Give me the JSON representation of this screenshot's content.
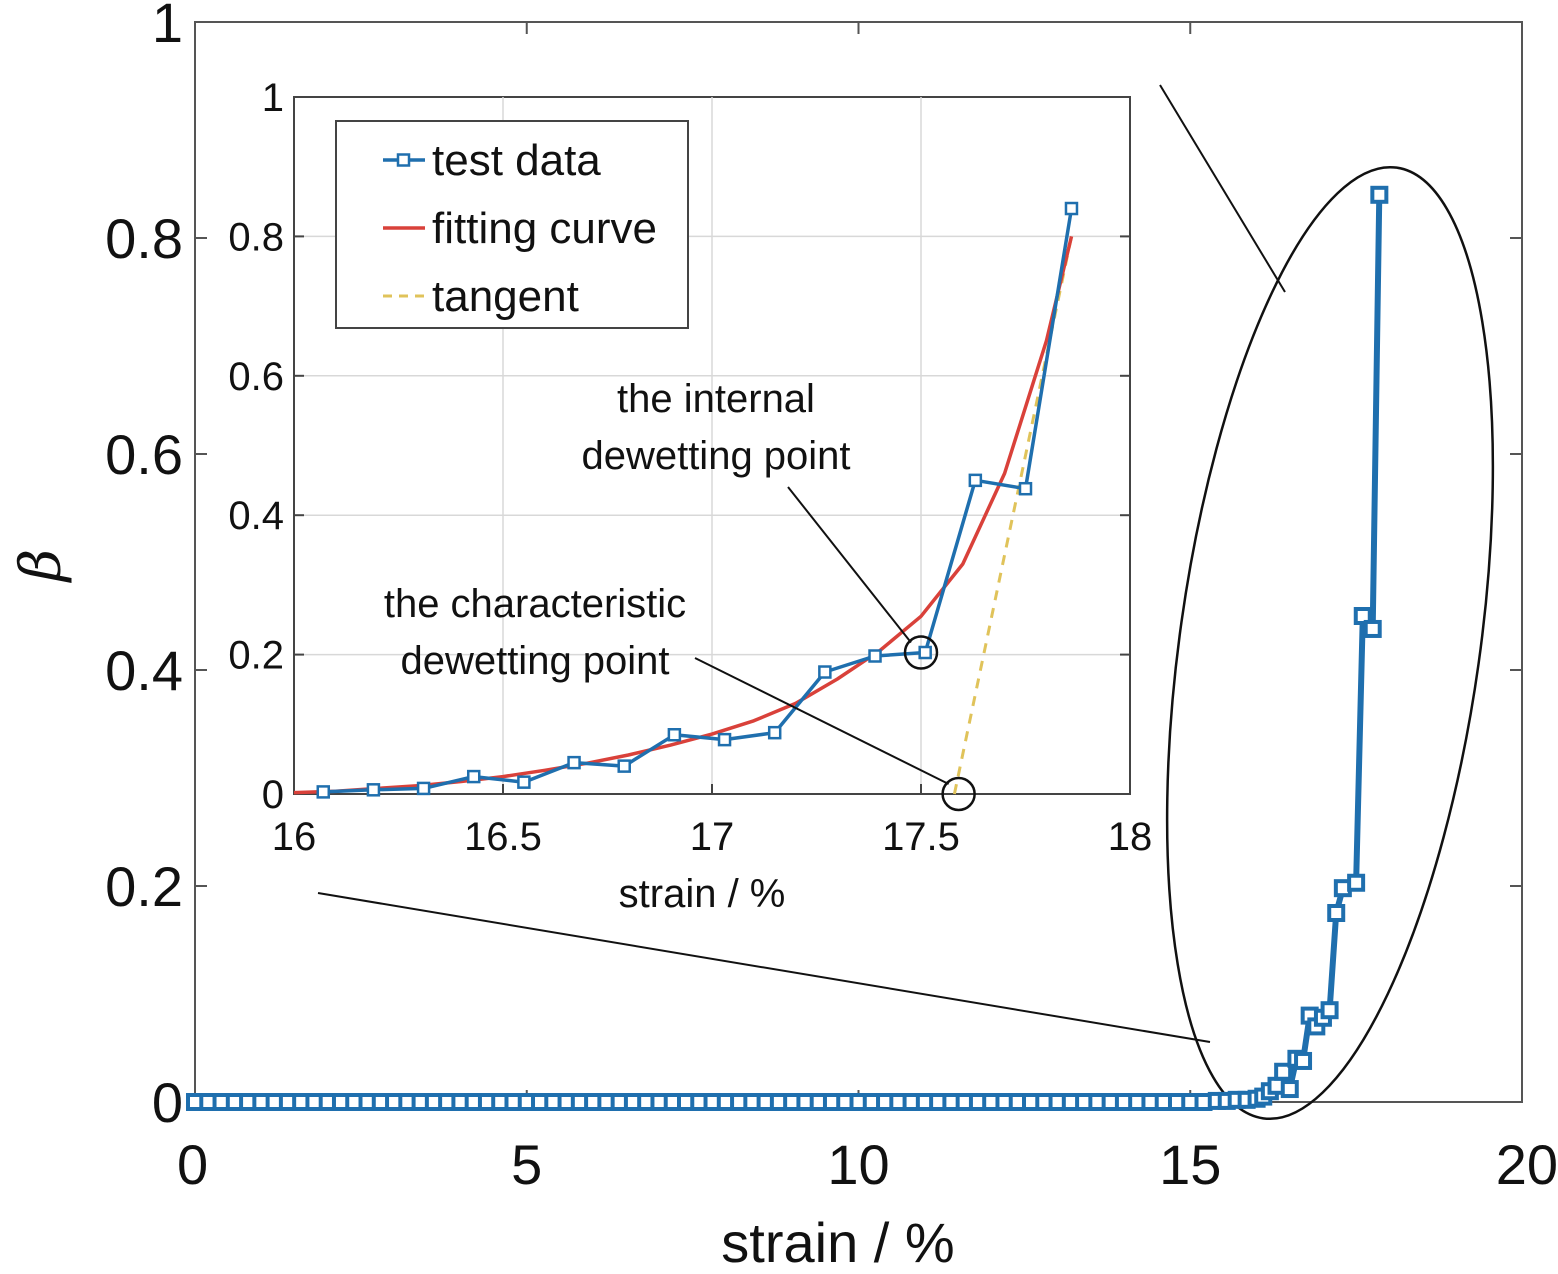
{
  "chart_data": [
    {
      "type": "line",
      "xlabel": "strain / %",
      "ylabel": "β",
      "xlim": [
        0,
        20
      ],
      "ylim": [
        0,
        1
      ],
      "x_ticks": [
        "0",
        "5",
        "10",
        "15",
        "20"
      ],
      "y_ticks": [
        "0",
        "0.2",
        "0.4",
        "0.6",
        "0.8",
        "1"
      ],
      "grid": false,
      "series": [
        {
          "name": "test data",
          "color": "#1f6fae",
          "marker": "square",
          "x": [
            0,
            0.2,
            0.4,
            0.6,
            0.8,
            1.0,
            1.2,
            1.4,
            1.6,
            1.8,
            2.0,
            2.2,
            2.4,
            2.6,
            2.8,
            3.0,
            3.2,
            3.4,
            3.6,
            3.8,
            4.0,
            4.2,
            4.4,
            4.6,
            4.8,
            5.0,
            5.2,
            5.4,
            5.6,
            5.8,
            6.0,
            6.2,
            6.4,
            6.6,
            6.8,
            7.0,
            7.2,
            7.4,
            7.6,
            7.8,
            8.0,
            8.2,
            8.4,
            8.6,
            8.8,
            9.0,
            9.2,
            9.4,
            9.6,
            9.8,
            10.0,
            10.2,
            10.4,
            10.6,
            10.8,
            11.0,
            11.2,
            11.4,
            11.6,
            11.8,
            12.0,
            12.2,
            12.4,
            12.6,
            12.8,
            13.0,
            13.2,
            13.4,
            13.6,
            13.8,
            14.0,
            14.2,
            14.4,
            14.6,
            14.8,
            15.0,
            15.2,
            15.4,
            15.55,
            15.7,
            15.85,
            16.0,
            16.1,
            16.2,
            16.3,
            16.4,
            16.5,
            16.6,
            16.7,
            16.8,
            16.9,
            17.0,
            17.1,
            17.2,
            17.3,
            17.5,
            17.6,
            17.75,
            17.85
          ],
          "y": [
            0,
            0,
            0,
            0,
            0,
            0,
            0,
            0,
            0,
            0,
            0,
            0,
            0,
            0,
            0,
            0,
            0,
            0,
            0,
            0,
            0,
            0,
            0,
            0,
            0,
            0,
            0,
            0,
            0,
            0,
            0,
            0,
            0,
            0,
            0,
            0,
            0,
            0,
            0,
            0,
            0,
            0,
            0,
            0,
            0,
            0,
            0,
            0,
            0,
            0,
            0,
            0,
            0,
            0,
            0,
            0,
            0,
            0,
            0,
            0,
            0,
            0,
            0,
            0,
            0,
            0,
            0,
            0,
            0,
            0,
            0,
            0,
            0,
            0,
            0,
            0,
            0,
            0.001,
            0.001,
            0.002,
            0.002,
            0.003,
            0.005,
            0.01,
            0.015,
            0.028,
            0.012,
            0.04,
            0.038,
            0.08,
            0.07,
            0.078,
            0.085,
            0.175,
            0.198,
            0.203,
            0.45,
            0.438,
            0.84
          ]
        }
      ]
    },
    {
      "type": "line",
      "xlabel": "strain / %",
      "ylabel": "",
      "xlim": [
        16,
        18
      ],
      "ylim": [
        0,
        1
      ],
      "x_ticks": [
        "16",
        "16.5",
        "17",
        "17.5",
        "18"
      ],
      "y_ticks": [
        "0",
        "0.2",
        "0.4",
        "0.6",
        "0.8",
        "1"
      ],
      "grid": true,
      "legend_position": "top-left",
      "series": [
        {
          "name": "test data",
          "color": "#1f6fae",
          "marker": "square",
          "x": [
            16.07,
            16.19,
            16.31,
            16.43,
            16.55,
            16.67,
            16.79,
            16.91,
            17.03,
            17.15,
            17.27,
            17.39,
            17.51,
            17.63,
            17.75,
            17.86
          ],
          "y": [
            0.003,
            0.006,
            0.008,
            0.025,
            0.017,
            0.045,
            0.04,
            0.085,
            0.078,
            0.088,
            0.175,
            0.198,
            0.203,
            0.45,
            0.438,
            0.84
          ]
        },
        {
          "name": "fitting curve",
          "color": "#d9413a",
          "x": [
            16.0,
            16.1,
            16.2,
            16.3,
            16.4,
            16.5,
            16.6,
            16.7,
            16.8,
            16.9,
            17.0,
            17.1,
            17.2,
            17.3,
            17.4,
            17.5,
            17.6,
            17.7,
            17.8,
            17.86
          ],
          "y": [
            0.002,
            0.004,
            0.008,
            0.012,
            0.018,
            0.025,
            0.034,
            0.044,
            0.056,
            0.07,
            0.086,
            0.105,
            0.13,
            0.165,
            0.205,
            0.255,
            0.33,
            0.46,
            0.65,
            0.8
          ]
        },
        {
          "name": "tangent",
          "color": "#e0c35a",
          "dash": true,
          "x": [
            17.58,
            17.86
          ],
          "y": [
            0.0,
            0.8
          ]
        }
      ],
      "annotations": [
        {
          "text_lines": [
            "the internal",
            "dewetting point"
          ],
          "x": 17.5,
          "y": 0.203
        },
        {
          "text_lines": [
            "the characteristic",
            "dewetting point"
          ],
          "x": 17.59,
          "y": 0.0
        }
      ]
    }
  ]
}
